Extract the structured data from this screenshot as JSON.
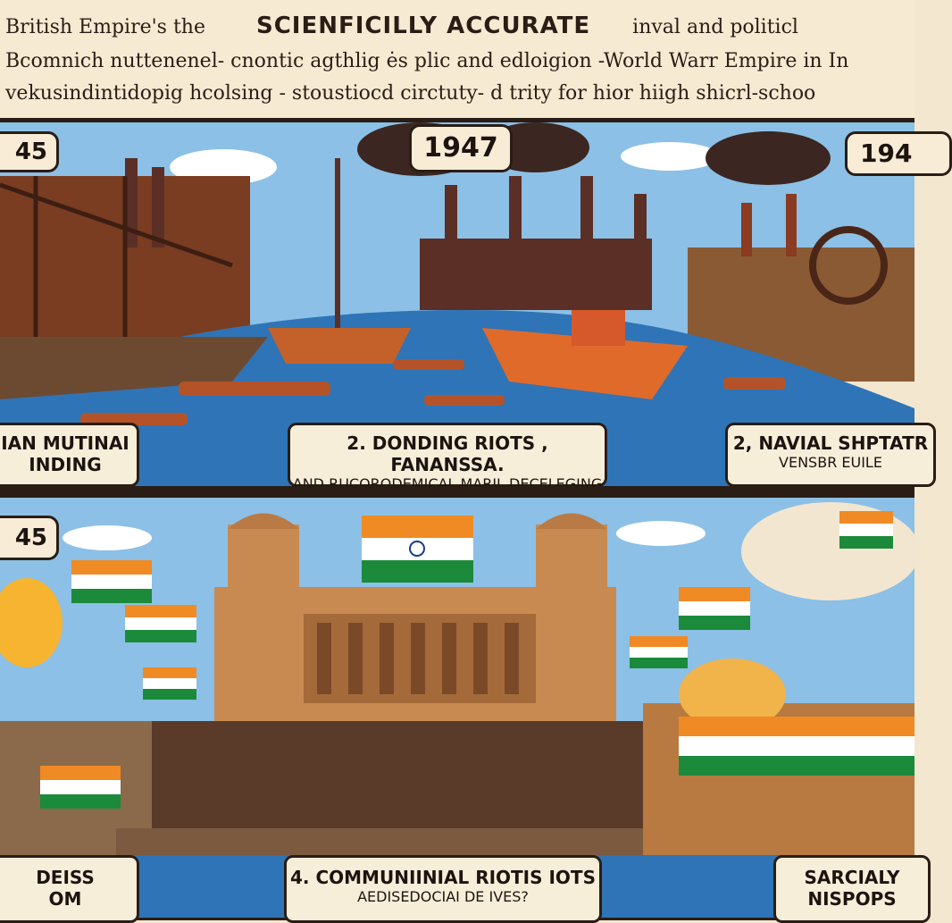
{
  "header": {
    "line1_left": "British Empire's the",
    "title": "SCIENFICILLY ACCURATE",
    "line1_right": "inval and politicl",
    "line2": "Bcomnich nuttenenel- cnontic  agthlig ės plic and edloigion -World Warr Empire in In",
    "line3": "vekusindintidopig hcolsing - stoustiocd circtuty- d  trity for hior hiigh shicrl-schoo"
  },
  "panels_top": {
    "years": [
      "45",
      "1947",
      "194"
    ],
    "captions": [
      {
        "line1": "IAN MUTINAI",
        "line2": "INDING"
      },
      {
        "line1": "2. DONDING RIOTS , FANANSSA.",
        "line2": "AND RUCORODEMICAL MARIL DECELEGING"
      },
      {
        "line1": "2, NAVIAL SHPTATR",
        "line2": "VENSBR EUILE"
      }
    ]
  },
  "panels_bottom": {
    "years": [
      "45"
    ],
    "captions": [
      {
        "line1": "DEISS",
        "line2": "OM"
      },
      {
        "line1": "4. COMMUNIINIAL RIOTIS IOTS",
        "line2": "AEDISEDOCIAI DE IVES?"
      },
      {
        "line1": "SARCIALY",
        "line2": "NISPOPS"
      }
    ]
  },
  "colors": {
    "sky": "#8cc0e6",
    "water": "#2f74b6",
    "saffron": "#f08a24",
    "green": "#1b8a3a",
    "ink": "#2a1d15",
    "paper": "#f6ead2"
  }
}
